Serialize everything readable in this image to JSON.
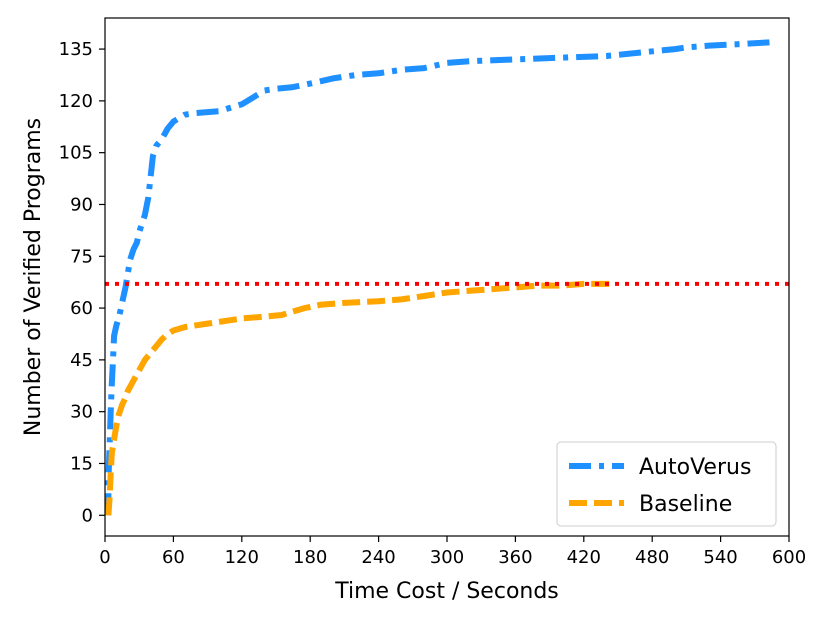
{
  "chart_data": {
    "type": "line",
    "xlabel": "Time Cost / Seconds",
    "ylabel": "Number of Verified Programs",
    "xlim": [
      0,
      600
    ],
    "ylim": [
      -6,
      144
    ],
    "xticks": [
      0,
      60,
      120,
      180,
      240,
      300,
      360,
      420,
      480,
      540,
      600
    ],
    "yticks": [
      0,
      15,
      30,
      45,
      60,
      75,
      90,
      105,
      120,
      135
    ],
    "grid": false,
    "legend_position": "lower-right",
    "series": [
      {
        "name": "AutoVerus",
        "color": "#1E90FF",
        "style": "dashdot",
        "points": [
          [
            3,
            0
          ],
          [
            3,
            10
          ],
          [
            4,
            20
          ],
          [
            5,
            30
          ],
          [
            6,
            38
          ],
          [
            7,
            45
          ],
          [
            8,
            52
          ],
          [
            10,
            55
          ],
          [
            12,
            57
          ],
          [
            14,
            60
          ],
          [
            16,
            63
          ],
          [
            18,
            66
          ],
          [
            20,
            70
          ],
          [
            22,
            74
          ],
          [
            25,
            77
          ],
          [
            28,
            79
          ],
          [
            30,
            82
          ],
          [
            35,
            87
          ],
          [
            38,
            92
          ],
          [
            40,
            98
          ],
          [
            42,
            104
          ],
          [
            45,
            107
          ],
          [
            50,
            109
          ],
          [
            55,
            112
          ],
          [
            60,
            114
          ],
          [
            65,
            115
          ],
          [
            70,
            116
          ],
          [
            80,
            116.5
          ],
          [
            100,
            117
          ],
          [
            110,
            118
          ],
          [
            120,
            119
          ],
          [
            130,
            121
          ],
          [
            140,
            123
          ],
          [
            150,
            123.5
          ],
          [
            165,
            124
          ],
          [
            180,
            125
          ],
          [
            200,
            126.5
          ],
          [
            220,
            127.5
          ],
          [
            240,
            128
          ],
          [
            260,
            129
          ],
          [
            280,
            129.5
          ],
          [
            300,
            131
          ],
          [
            320,
            131.5
          ],
          [
            360,
            132
          ],
          [
            400,
            132.5
          ],
          [
            440,
            133
          ],
          [
            470,
            134
          ],
          [
            500,
            135
          ],
          [
            510,
            135.5
          ],
          [
            530,
            136
          ],
          [
            560,
            136.5
          ],
          [
            585,
            137
          ]
        ]
      },
      {
        "name": "Baseline",
        "color": "#FFA500",
        "style": "dashed",
        "points": [
          [
            3,
            0
          ],
          [
            4,
            5
          ],
          [
            5,
            12
          ],
          [
            6,
            18
          ],
          [
            8,
            22
          ],
          [
            10,
            26
          ],
          [
            12,
            29
          ],
          [
            15,
            32
          ],
          [
            18,
            34
          ],
          [
            20,
            36
          ],
          [
            25,
            39
          ],
          [
            30,
            42
          ],
          [
            35,
            45
          ],
          [
            40,
            47
          ],
          [
            45,
            49
          ],
          [
            50,
            51
          ],
          [
            55,
            52.5
          ],
          [
            60,
            53.5
          ],
          [
            70,
            54.5
          ],
          [
            80,
            55
          ],
          [
            90,
            55.5
          ],
          [
            100,
            56
          ],
          [
            110,
            56.5
          ],
          [
            120,
            57
          ],
          [
            140,
            57.5
          ],
          [
            155,
            58
          ],
          [
            165,
            59
          ],
          [
            175,
            60
          ],
          [
            190,
            61
          ],
          [
            210,
            61.5
          ],
          [
            240,
            62
          ],
          [
            260,
            62.5
          ],
          [
            280,
            63.5
          ],
          [
            300,
            64.5
          ],
          [
            320,
            65
          ],
          [
            340,
            65.5
          ],
          [
            360,
            66
          ],
          [
            380,
            66.5
          ],
          [
            400,
            66.5
          ],
          [
            420,
            67
          ],
          [
            445,
            67
          ]
        ]
      },
      {
        "name": "",
        "color": "#FF0000",
        "style": "dotted",
        "points": [
          [
            0,
            67
          ],
          [
            600,
            67
          ]
        ]
      }
    ]
  }
}
